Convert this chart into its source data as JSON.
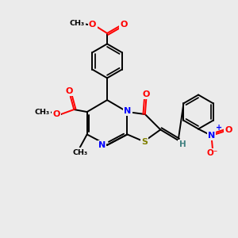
{
  "bg_color": "#ebebeb",
  "bond_color": "black",
  "N_color": "#0000ff",
  "O_color": "#ff0000",
  "S_color": "#808000",
  "H_color": "#408080",
  "lw": 1.4,
  "figsize": [
    3.0,
    3.0
  ],
  "dpi": 100,
  "xlim": [
    0,
    10
  ],
  "ylim": [
    0,
    10
  ]
}
